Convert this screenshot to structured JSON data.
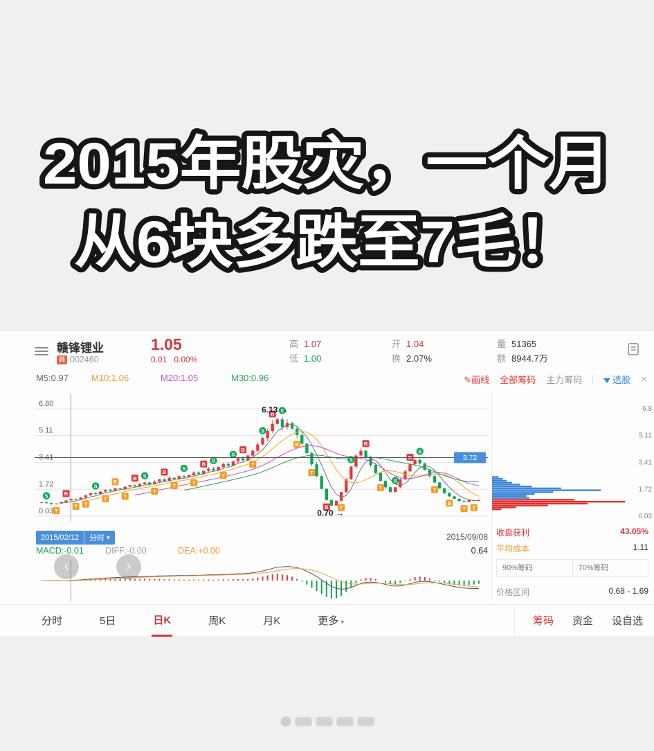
{
  "headline": {
    "line1": "2015年股灾，一个月",
    "line2": "从6块多跌至7毛！"
  },
  "header": {
    "stock_name": "赣锋锂业",
    "margin_badge": "融",
    "stock_code": "002460",
    "price": "1.05",
    "change_amt": "0.01",
    "change_pct": "0.00%",
    "high_label": "高",
    "high": "1.07",
    "low_label": "低",
    "low": "1.00",
    "open_label": "开",
    "open": "1.04",
    "turn_label": "换",
    "turn": "2.07%",
    "vol_label": "量",
    "vol": "51365",
    "amt_label": "额",
    "amt": "8944.7万"
  },
  "toolbar": {
    "m5": "M5:0.97",
    "m10": "M10:1.06",
    "m20": "M20:1.05",
    "m30": "M30:0.96",
    "draw_icon": "✎",
    "draw_line": "画线",
    "all_chips": "全部筹码",
    "main_chips": "主力筹码",
    "stock_pick": "选股",
    "close": "×"
  },
  "chart_data": {
    "type": "candlestick",
    "title": "赣锋锂业 002460 日K",
    "x_range": [
      "2015/02/12",
      "2015/09/08"
    ],
    "grid": [
      [
        "6.80",
        6.8
      ],
      [
        "5.11",
        5.11
      ],
      [
        "3.41",
        3.41
      ],
      [
        "1.72",
        1.72
      ],
      [
        "0.03",
        0.03
      ]
    ],
    "right_axis": [
      [
        "6.8",
        6.8
      ],
      [
        "5.11",
        5.11
      ],
      [
        "3.41",
        3.41
      ],
      [
        "1.72",
        1.72
      ],
      [
        "0.03",
        0.03
      ]
    ],
    "close": [
      0.9,
      0.85,
      0.78,
      0.83,
      0.92,
      1.02,
      1.12,
      1.08,
      1.2,
      1.35,
      1.48,
      1.42,
      1.58,
      1.68,
      1.62,
      1.78,
      1.72,
      1.88,
      1.98,
      1.9,
      2.05,
      2.15,
      2.05,
      2.2,
      2.35,
      2.25,
      2.45,
      2.38,
      2.55,
      2.48,
      2.62,
      2.78,
      2.68,
      2.88,
      3.02,
      2.92,
      3.12,
      3.32,
      3.22,
      3.48,
      3.68,
      3.55,
      3.85,
      4.15,
      4.55,
      4.95,
      5.4,
      5.85,
      6.13,
      5.65,
      5.9,
      5.55,
      5.15,
      4.6,
      4.0,
      3.3,
      2.55,
      1.75,
      1.05,
      0.7,
      1.0,
      1.55,
      2.35,
      3.15,
      3.85,
      4.15,
      3.75,
      3.25,
      2.75,
      2.25,
      1.85,
      1.55,
      1.85,
      2.35,
      2.85,
      3.3,
      3.58,
      3.35,
      2.95,
      2.55,
      2.15,
      1.78,
      1.48,
      1.28,
      1.12,
      0.98,
      0.92,
      1.04,
      1.0,
      1.05
    ],
    "markers": [
      [
        1,
        "S",
        "g",
        "a"
      ],
      [
        3,
        "T",
        "o",
        "b"
      ],
      [
        5,
        "B",
        "r",
        "a"
      ],
      [
        7,
        "T",
        "o",
        "b"
      ],
      [
        9,
        "T",
        "o",
        "b"
      ],
      [
        11,
        "S",
        "g",
        "a"
      ],
      [
        13,
        "T",
        "o",
        "b"
      ],
      [
        15,
        "B",
        "o",
        "a"
      ],
      [
        17,
        "T",
        "o",
        "b"
      ],
      [
        19,
        "B",
        "r",
        "a"
      ],
      [
        21,
        "S",
        "g",
        "a"
      ],
      [
        23,
        "T",
        "o",
        "b"
      ],
      [
        25,
        "B",
        "r",
        "a"
      ],
      [
        27,
        "T",
        "o",
        "b"
      ],
      [
        29,
        "S",
        "g",
        "a"
      ],
      [
        31,
        "T",
        "o",
        "b"
      ],
      [
        33,
        "B",
        "r",
        "a"
      ],
      [
        35,
        "S",
        "g",
        "a"
      ],
      [
        37,
        "T",
        "o",
        "b"
      ],
      [
        39,
        "S",
        "g",
        "a"
      ],
      [
        41,
        "B",
        "r",
        "a"
      ],
      [
        43,
        "T",
        "o",
        "b"
      ],
      [
        45,
        "S",
        "g",
        "a"
      ],
      [
        47,
        "B",
        "r",
        "a"
      ],
      [
        49,
        "S",
        "g",
        "a"
      ],
      [
        52,
        "B",
        "o",
        "b"
      ],
      [
        55,
        "T",
        "o",
        "b"
      ],
      [
        58,
        "B",
        "r",
        "b"
      ],
      [
        61,
        "T",
        "o",
        "b"
      ],
      [
        63,
        "S",
        "g",
        "a"
      ],
      [
        66,
        "B",
        "r",
        "a"
      ],
      [
        69,
        "T",
        "o",
        "b"
      ],
      [
        72,
        "S",
        "g",
        "a"
      ],
      [
        75,
        "B",
        "r",
        "a"
      ],
      [
        77,
        "S",
        "g",
        "a"
      ],
      [
        80,
        "T",
        "o",
        "b"
      ],
      [
        83,
        "B",
        "o",
        "b"
      ],
      [
        86,
        "T",
        "o",
        "b"
      ],
      [
        88,
        "T",
        "o",
        "b"
      ]
    ],
    "peak_annotation": "6.13",
    "peak_index": 48,
    "trough_annotation": "0.70",
    "trough_index": 59,
    "hline_value": 3.72,
    "hline_label": "3.72",
    "crosshair_index": 6,
    "date_start": "2015/02/12",
    "period_badge": "分时",
    "period_caret": "▾",
    "date_end": "2015/09/08",
    "macd": {
      "macd_label": "MACD:-0.01",
      "diff_label": "DIFF:-0.00",
      "dea_label": "DEA:+0.00",
      "right_value": "0.64"
    },
    "chips": {
      "bars": [
        [
          2.5,
          0.05,
          "b"
        ],
        [
          2.38,
          0.08,
          "b"
        ],
        [
          2.26,
          0.11,
          "b"
        ],
        [
          2.14,
          0.15,
          "b"
        ],
        [
          2.02,
          0.21,
          "b"
        ],
        [
          1.9,
          0.3,
          "b"
        ],
        [
          1.78,
          0.52,
          "b"
        ],
        [
          1.66,
          0.82,
          "b"
        ],
        [
          1.54,
          0.46,
          "b"
        ],
        [
          1.42,
          0.32,
          "b"
        ],
        [
          1.3,
          0.26,
          "b"
        ],
        [
          1.18,
          0.28,
          "b"
        ],
        [
          1.06,
          0.62,
          "r"
        ],
        [
          0.94,
          1.0,
          "r"
        ],
        [
          0.82,
          0.72,
          "r"
        ],
        [
          0.7,
          0.42,
          "r"
        ],
        [
          0.58,
          0.18,
          "r"
        ],
        [
          0.46,
          0.07,
          "r"
        ]
      ]
    }
  },
  "chips_panel": {
    "profit_label": "收盘获利",
    "profit_value": "43.05%",
    "avg_cost_label": "平均成本",
    "avg_cost_value": "1.11",
    "chips90": "90%筹码",
    "chips70": "70%筹码",
    "range_label": "价格区间",
    "range_value": "0.68 - 1.69"
  },
  "nav": {
    "prev": "‹",
    "next": "›"
  },
  "tabs": {
    "items": [
      "分时",
      "5日",
      "日K",
      "周K",
      "月K",
      "更多"
    ],
    "active": "日K",
    "more_caret": "▾",
    "right": [
      "筹码",
      "资金",
      "设自选"
    ]
  },
  "colors": {
    "up": "#e23b3b",
    "down": "#0fa558",
    "ma5": "#777777",
    "ma10": "#f5a623",
    "ma20": "#c94fc3",
    "ma30": "#2fa05a",
    "marker_orange": "#f59b22",
    "badge_blue": "#4a90d9",
    "chip_blue": "#3d86d8",
    "chip_red": "#e03030",
    "grid": "#e3e3e3",
    "hline": "#555555"
  }
}
